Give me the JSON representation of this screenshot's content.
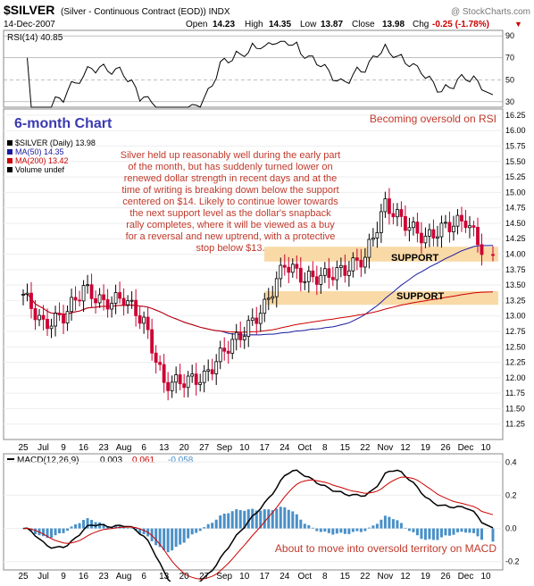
{
  "header": {
    "symbol": "$SILVER",
    "description": "(Silver - Continuous Contract (EOD)) INDX",
    "watermark": "@ StockCharts.com",
    "date": "14-Dec-2007",
    "open_label": "Open",
    "open": "14.23",
    "high_label": "High",
    "high": "14.35",
    "low_label": "Low",
    "low": "13.87",
    "close_label": "Close",
    "close": "13.98",
    "chg_label": "Chg",
    "chg": "-0.25 (-1.78%)",
    "chg_arrow": "▼"
  },
  "rsi_panel": {
    "label": "RSI(14) 40.85",
    "ticks": [
      "90",
      "70",
      "50",
      "30"
    ]
  },
  "main_panel": {
    "title": "6-month Chart",
    "legend": [
      {
        "text": "$SILVER (Daily) 13.98",
        "color": "#000000"
      },
      {
        "text": "MA(50) 14.35",
        "color": "#1a1aa0"
      },
      {
        "text": "MA(200) 13.42",
        "color": "#cc0000"
      },
      {
        "text": "Volume undef",
        "color": "#000000"
      }
    ],
    "commentary": [
      "Silver held up reasonably well during the early part",
      "of the month, but has suddenly turned lower on",
      "renewed dollar strength in recent days and at the",
      "time of writing is breaking down below the support",
      "centered on $14. Likely to continue lower towards",
      "the next support level as the dollar's snapback",
      "rally completes, where it will be viewed as a buy",
      "for a reversal and new uptrend, with a protective",
      "stop below $13."
    ],
    "rsi_note": "Becoming oversold on RSI",
    "support_upper": "SUPPORT",
    "support_lower": "SUPPORT",
    "y_ticks": [
      "16.25",
      "16.00",
      "15.75",
      "15.50",
      "15.25",
      "15.00",
      "14.75",
      "14.50",
      "14.25",
      "14.00",
      "13.75",
      "13.50",
      "13.25",
      "13.00",
      "12.75",
      "12.50",
      "12.25",
      "12.00",
      "11.75",
      "11.50",
      "11.25"
    ],
    "x_ticks": [
      "25",
      "Jul",
      "9",
      "16",
      "23",
      "Aug",
      "6",
      "13",
      "20",
      "27",
      "Sep",
      "10",
      "17",
      "24",
      "Oct",
      "8",
      "15",
      "22",
      "Nov",
      "12",
      "19",
      "26",
      "Dec",
      "10"
    ]
  },
  "macd_panel": {
    "label_prefix": "MACD(12,26,9)",
    "macd": "0.003",
    "signal": "0.061",
    "hist": "-0.058",
    "y_ticks": [
      "0.4",
      "0.2",
      "0.0",
      "-0.2"
    ],
    "note": "About to move into oversold territory on MACD",
    "x_ticks": [
      "25",
      "Jul",
      "9",
      "16",
      "23",
      "Aug",
      "6",
      "13",
      "20",
      "27",
      "Sep",
      "10",
      "17",
      "24",
      "Oct",
      "8",
      "15",
      "22",
      "Nov",
      "12",
      "19",
      "26",
      "Dec",
      "10"
    ]
  },
  "colors": {
    "up_candle": "#000000",
    "down_candle": "#cc0033",
    "ma50": "#1a1aa0",
    "ma200": "#cc0000",
    "support_band": "#f9d9a6",
    "rsi_fill": "#3a7a3a",
    "macd_hist": "#4a90c8",
    "macd_line": "#000000",
    "signal_line": "#cc0000",
    "title_blue": "#3a3ab0",
    "note_red": "#c0392b",
    "commentary_red": "#c0392b"
  },
  "chart_data": {
    "type": "candlestick",
    "x_axis_dates": [
      "25",
      "Jul",
      "9",
      "16",
      "23",
      "Aug",
      "6",
      "13",
      "20",
      "27",
      "Sep",
      "10",
      "17",
      "24",
      "Oct",
      "8",
      "15",
      "22",
      "Nov",
      "12",
      "19",
      "26",
      "Dec",
      "10"
    ],
    "price_ylim": [
      11.0,
      16.35
    ],
    "price_series_weekly_close": [
      {
        "x": "25",
        "close": 13.35
      },
      {
        "x": "Jul",
        "close": 12.85
      },
      {
        "x": "9",
        "close": 13.0
      },
      {
        "x": "16",
        "close": 13.45
      },
      {
        "x": "23",
        "close": 13.2
      },
      {
        "x": "Aug",
        "close": 13.3
      },
      {
        "x": "6",
        "close": 12.9
      },
      {
        "x": "13",
        "close": 11.9
      },
      {
        "x": "20",
        "close": 11.95
      },
      {
        "x": "27",
        "close": 12.0
      },
      {
        "x": "Sep",
        "close": 12.45
      },
      {
        "x": "10",
        "close": 12.75
      },
      {
        "x": "17",
        "close": 13.15
      },
      {
        "x": "24",
        "close": 13.85
      },
      {
        "x": "Oct",
        "close": 13.6
      },
      {
        "x": "8",
        "close": 13.65
      },
      {
        "x": "15",
        "close": 13.75
      },
      {
        "x": "22",
        "close": 13.95
      },
      {
        "x": "Nov",
        "close": 14.8
      },
      {
        "x": "12",
        "close": 14.5
      },
      {
        "x": "19",
        "close": 14.25
      },
      {
        "x": "26",
        "close": 14.45
      },
      {
        "x": "Dec",
        "close": 14.55
      },
      {
        "x": "10",
        "close": 13.98
      }
    ],
    "ma50_last": 14.35,
    "ma200_last": 13.42,
    "support_levels": [
      14.0,
      13.3
    ],
    "rsi_last": 40.85,
    "rsi_ylim": [
      30,
      90
    ],
    "macd": {
      "macd": 0.003,
      "signal": 0.061,
      "histogram": -0.058,
      "ylim": [
        -0.25,
        0.45
      ]
    }
  }
}
